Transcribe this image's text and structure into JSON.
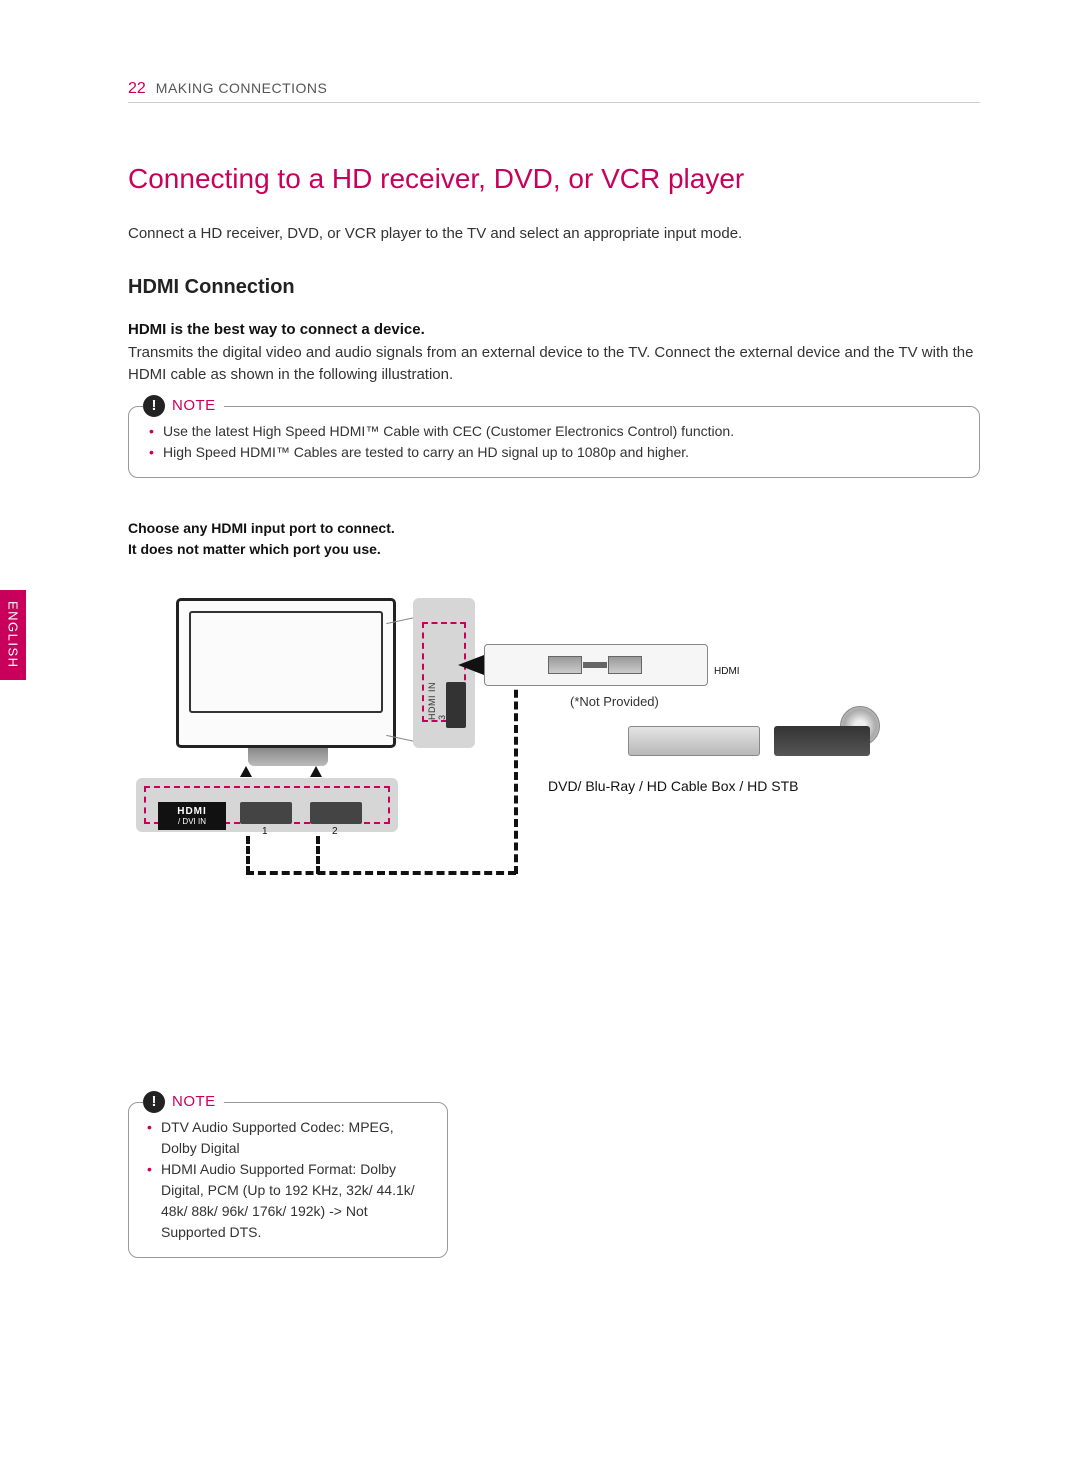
{
  "header": {
    "page_number": "22",
    "section": "MAKING CONNECTIONS"
  },
  "language_tab": "ENGLISH",
  "title": "Connecting to a HD receiver, DVD, or VCR player",
  "intro": "Connect a HD receiver, DVD, or VCR player to the TV and select an appropriate input mode.",
  "hdmi": {
    "heading": "HDMI Connection",
    "bold": "HDMI is the best way to connect a device.",
    "body": "Transmits the digital video and audio signals from an external device to the TV. Connect the external device and the TV with the HDMI cable as shown in the following illustration."
  },
  "note1": {
    "label": "NOTE",
    "items": [
      "Use the latest High Speed HDMI™ Cable with CEC (Customer Electronics Control) function.",
      "High Speed HDMI™ Cables are tested to carry an HD signal up to 1080p and higher."
    ]
  },
  "choose": {
    "l1": "Choose any HDMI input port to connect.",
    "l2": "It does not matter which port you use."
  },
  "diagram": {
    "hdmi_side_label": "HDMI IN 3",
    "hdmi_brand": "HDMI",
    "dvi_in": "/ DVI IN",
    "port1": "1",
    "port2": "2",
    "hdmi_cable_label": "HDMI",
    "not_provided": "(*Not Provided)",
    "devices_label": "DVD/ Blu-Ray / HD Cable Box / HD STB"
  },
  "note2": {
    "label": "NOTE",
    "items": [
      "DTV Audio Supported Codec: MPEG, Dolby Digital",
      "HDMI Audio Supported Format: Dolby Digital, PCM (Up to 192 KHz, 32k/ 44.1k/ 48k/ 88k/ 96k/ 176k/ 192k) -> Not Supported DTS."
    ]
  },
  "colors": {
    "accent": "#c9005b",
    "text": "#333333",
    "border": "#999999"
  }
}
